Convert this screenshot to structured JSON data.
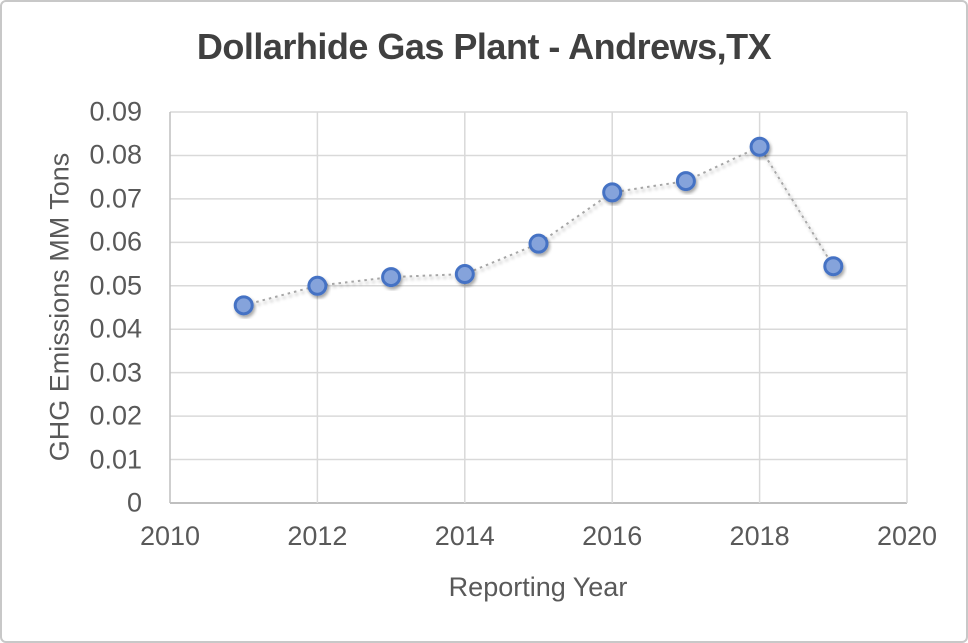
{
  "frame": {
    "background": "#FFFFFF",
    "border_color": "#C8C8C8"
  },
  "chart_data": {
    "type": "scatter",
    "title": "Dollarhide Gas Plant - Andrews,TX",
    "xlabel": "Reporting Year",
    "ylabel": "GHG Emissions MM Tons",
    "x": [
      2011,
      2012,
      2013,
      2014,
      2015,
      2016,
      2017,
      2018,
      2019
    ],
    "y": [
      0.0455,
      0.05,
      0.052,
      0.0527,
      0.0597,
      0.0715,
      0.0741,
      0.082,
      0.0545
    ],
    "xlim": [
      2010,
      2020
    ],
    "ylim": [
      0,
      0.09
    ],
    "x_ticks": {
      "values": [
        2010,
        2012,
        2014,
        2016,
        2018,
        2020
      ],
      "labels": [
        "2010",
        "2012",
        "2014",
        "2016",
        "2018",
        "2020"
      ]
    },
    "y_ticks": {
      "values": [
        0,
        0.01,
        0.02,
        0.03,
        0.04,
        0.05,
        0.06,
        0.07,
        0.08,
        0.09
      ],
      "labels": [
        "0",
        "0.01",
        "0.02",
        "0.03",
        "0.04",
        "0.05",
        "0.06",
        "0.07",
        "0.08",
        "0.09"
      ]
    },
    "grid": true,
    "legend": "none",
    "line_style": "dotted",
    "marker": "circle",
    "colors": {
      "marker_fill": "#85A3DB",
      "marker_border": "#4472C4",
      "line": "#A6A6A6",
      "gridline": "#D9D9D9",
      "axis_line": "#BFBFBF",
      "title_text": "#404040",
      "axis_text": "#595959"
    }
  }
}
